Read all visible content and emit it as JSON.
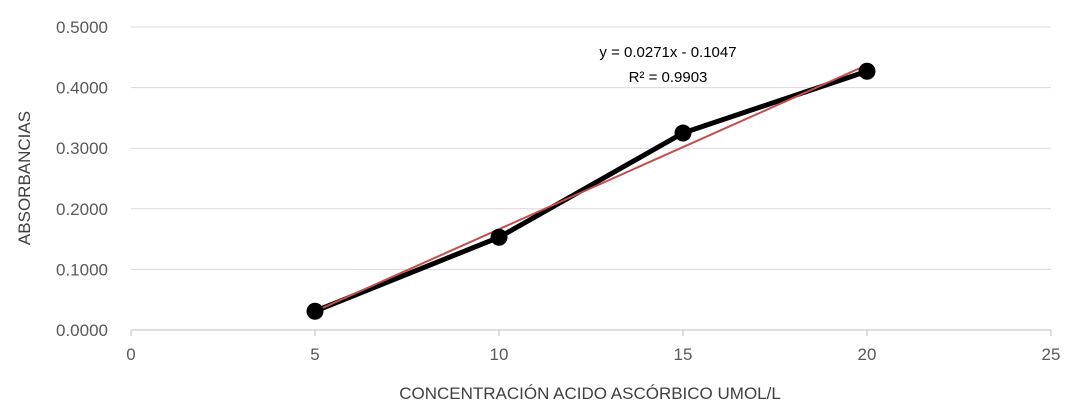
{
  "chart_data": {
    "type": "scatter",
    "title": "",
    "xlabel": "CONCENTRACIÓN ACIDO ASCÓRBICO UMOL/L",
    "ylabel": "ABSORBANCIAS",
    "xlim": [
      0,
      25
    ],
    "ylim": [
      0,
      0.5
    ],
    "x_ticks": [
      "0",
      "5",
      "10",
      "15",
      "20",
      "25"
    ],
    "y_ticks": [
      "0.0000",
      "0.1000",
      "0.2000",
      "0.3000",
      "0.4000",
      "0.5000"
    ],
    "grid": "horizontal",
    "legend": "none",
    "series": [
      {
        "x": [
          5,
          10,
          15,
          20
        ],
        "y": [
          0.031,
          0.153,
          0.325,
          0.427
        ],
        "color": "#000000",
        "marker": "circle",
        "line": true
      }
    ],
    "trendline": {
      "type": "linear",
      "slope": 0.0271,
      "intercept": -0.1047,
      "color": "#c0504d",
      "equation": "y = 0.0271x - 0.1047",
      "r_squared": "R² = 0.9903"
    }
  }
}
